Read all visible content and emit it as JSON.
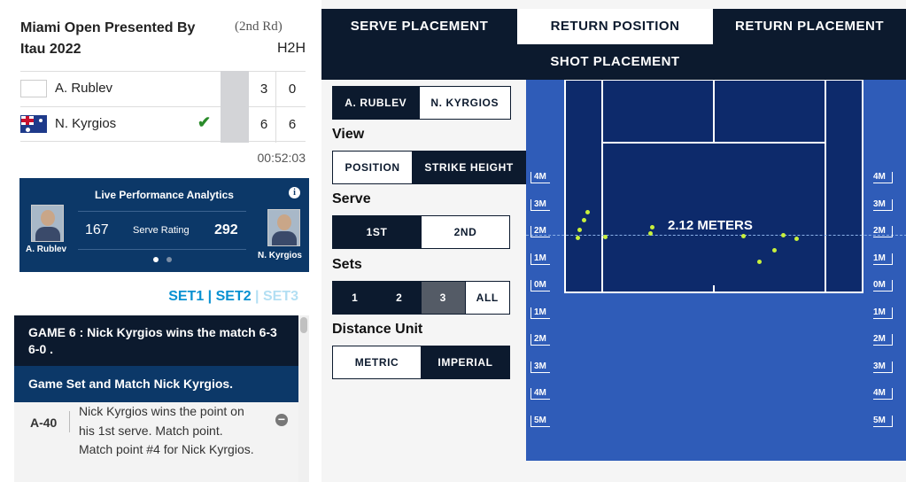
{
  "match": {
    "tournament": "Miami Open Presented By Itau 2022",
    "round": "(2nd Rd)",
    "h2h": "H2H",
    "players": [
      {
        "name": "A. Rublev",
        "set1": "3",
        "set2": "0",
        "winner": false
      },
      {
        "name": "N. Kyrgios",
        "set1": "6",
        "set2": "6",
        "winner": true,
        "check": "✔"
      }
    ],
    "duration": "00:52:03"
  },
  "analytics": {
    "title": "Live Performance Analytics",
    "info": "i",
    "player1": "A. Rublev",
    "player2": "N. Kyrgios",
    "value1": "167",
    "value2": "292",
    "metric": "Serve Rating"
  },
  "sets_nav": {
    "set1": "SET1",
    "sep1": " | ",
    "set2": "SET2",
    "sep2": " | ",
    "set3": "SET3"
  },
  "feed": {
    "game_header": "GAME 6 : Nick Kyrgios wins the match 6-3 6-0 .",
    "game_sub": "Game Set and Match Nick Kyrgios.",
    "point": {
      "score": "A-40",
      "text": "Nick Kyrgios wins the point on his 1st serve.  Match point. Match point #4 for Nick Kyrgios."
    }
  },
  "tabs": [
    "SERVE PLACEMENT",
    "RETURN POSITION",
    "RETURN PLACEMENT",
    "SHOT PLACEMENT"
  ],
  "controls": {
    "players": [
      "A. RUBLEV",
      "N. KYRGIOS"
    ],
    "view_label": "View",
    "view": [
      "POSITION",
      "STRIKE HEIGHT"
    ],
    "serve_label": "Serve",
    "serve": [
      "1ST",
      "2ND"
    ],
    "sets_label": "Sets",
    "sets": [
      "1",
      "2",
      "3",
      "ALL"
    ],
    "unit_label": "Distance Unit",
    "unit": [
      "METRIC",
      "IMPERIAL"
    ]
  },
  "court": {
    "distance_label": "2.12 METERS",
    "scale_labels": [
      "4M",
      "3M",
      "2M",
      "1M",
      "0M",
      "1M",
      "2M",
      "3M",
      "4M",
      "5M"
    ],
    "colors": {
      "court": "#2f5cb8",
      "inner": "#0d2a6b",
      "ball": "#c8f03c"
    }
  }
}
